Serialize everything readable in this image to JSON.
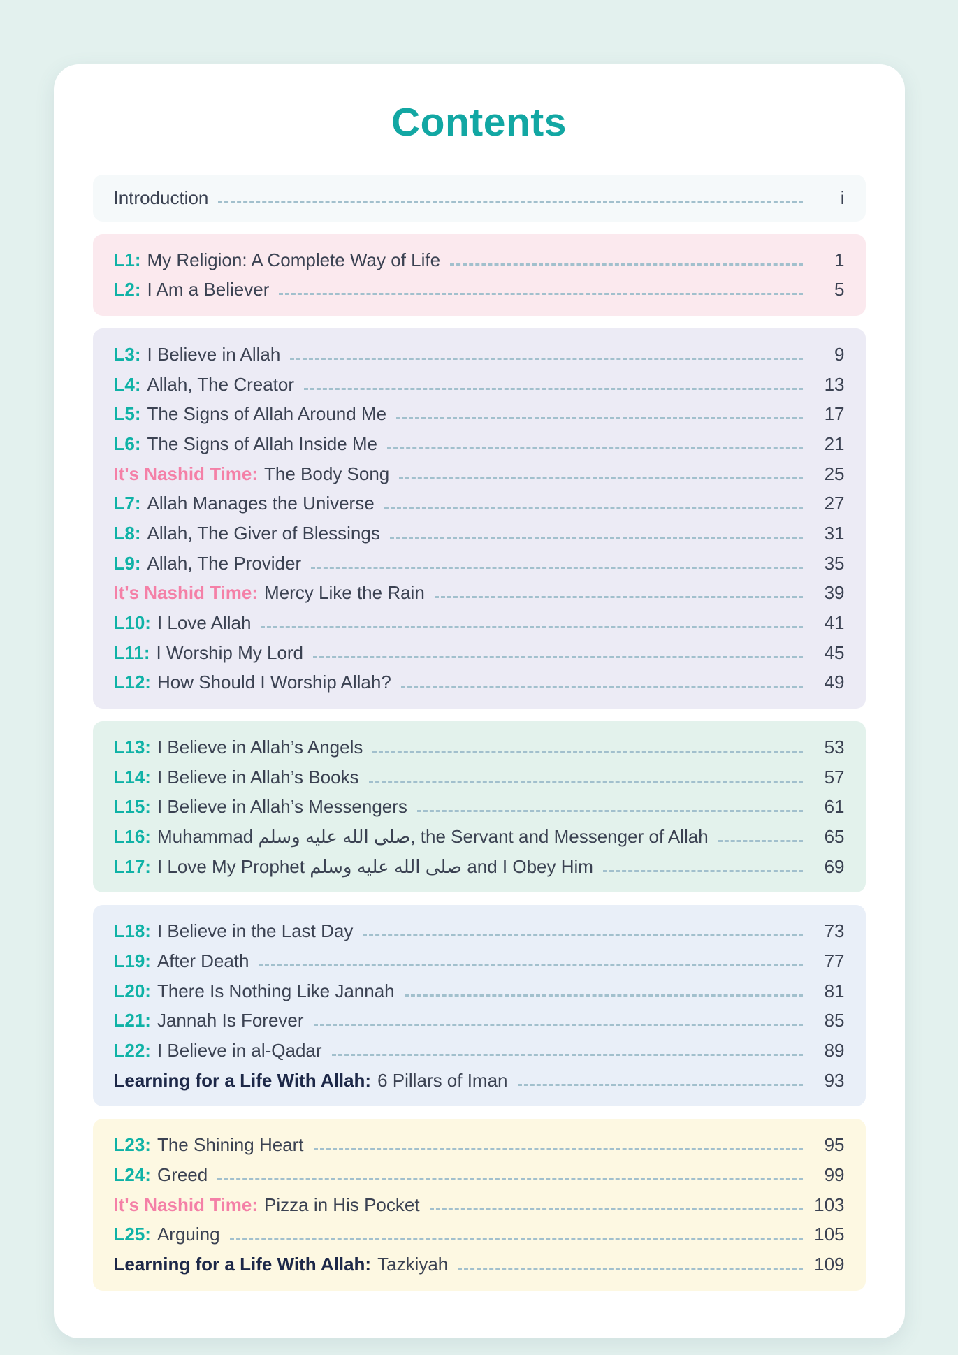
{
  "header": {
    "title": "Contents"
  },
  "colors": {
    "page_background": "#e3f1ee",
    "card_background": "#ffffff",
    "heading_teal": "#12a7a3",
    "lesson_prefix_teal": "#0fb2a6",
    "nashid_prefix_pink": "#f480a7",
    "learning_prefix_navy": "#1d2848",
    "body_text": "#3b4252",
    "leader_dash": "#a2c0cd"
  },
  "sections": [
    {
      "bg": "#f5f9fa",
      "kind": "intro",
      "entries": [
        {
          "type": "plain",
          "prefix": "",
          "title": "Introduction",
          "page": "i"
        }
      ]
    },
    {
      "bg": "#fbe9ee",
      "kind": "unit",
      "entries": [
        {
          "type": "lesson",
          "prefix": "L1:",
          "title": "My Religion: A Complete Way of Life",
          "page": "1"
        },
        {
          "type": "lesson",
          "prefix": "L2:",
          "title": "I Am a Believer",
          "page": "5"
        }
      ]
    },
    {
      "bg": "#ecebf5",
      "kind": "unit",
      "entries": [
        {
          "type": "lesson",
          "prefix": "L3:",
          "title": "I Believe in Allah",
          "page": "9"
        },
        {
          "type": "lesson",
          "prefix": "L4:",
          "title": "Allah, The Creator",
          "page": "13"
        },
        {
          "type": "lesson",
          "prefix": "L5:",
          "title": "The Signs of Allah Around Me",
          "page": "17"
        },
        {
          "type": "lesson",
          "prefix": "L6:",
          "title": "The Signs of Allah Inside Me",
          "page": "21"
        },
        {
          "type": "nashid",
          "prefix": "It's Nashid Time:",
          "title": "The Body Song",
          "page": "25"
        },
        {
          "type": "lesson",
          "prefix": "L7:",
          "title": "Allah Manages the Universe",
          "page": "27"
        },
        {
          "type": "lesson",
          "prefix": "L8:",
          "title": "Allah, The Giver of Blessings",
          "page": "31"
        },
        {
          "type": "lesson",
          "prefix": "L9:",
          "title": "Allah, The Provider",
          "page": "35"
        },
        {
          "type": "nashid",
          "prefix": "It's Nashid Time:",
          "title": "Mercy Like the Rain",
          "page": "39"
        },
        {
          "type": "lesson",
          "prefix": "L10:",
          "title": "I Love Allah",
          "page": "41"
        },
        {
          "type": "lesson",
          "prefix": "L11:",
          "title": "I Worship My Lord",
          "page": "45"
        },
        {
          "type": "lesson",
          "prefix": "L12:",
          "title": "How Should I Worship Allah?",
          "page": "49"
        }
      ]
    },
    {
      "bg": "#e3f2ec",
      "kind": "unit",
      "entries": [
        {
          "type": "lesson",
          "prefix": "L13:",
          "title": "I Believe in Allah’s Angels",
          "page": "53"
        },
        {
          "type": "lesson",
          "prefix": "L14:",
          "title": "I Believe in Allah’s Books",
          "page": "57"
        },
        {
          "type": "lesson",
          "prefix": "L15:",
          "title": "I Believe in Allah’s Messengers",
          "page": "61"
        },
        {
          "type": "lesson",
          "prefix": "L16:",
          "title": "Muhammad صلى الله عليه وسلم, the Servant and Messenger of Allah",
          "page": "65"
        },
        {
          "type": "lesson",
          "prefix": "L17:",
          "title": "I Love My Prophet صلى الله عليه وسلم and I Obey Him",
          "page": "69"
        }
      ]
    },
    {
      "bg": "#e9eff8",
      "kind": "unit",
      "entries": [
        {
          "type": "lesson",
          "prefix": "L18:",
          "title": "I Believe in the Last Day",
          "page": "73"
        },
        {
          "type": "lesson",
          "prefix": "L19:",
          "title": "After Death",
          "page": "77"
        },
        {
          "type": "lesson",
          "prefix": "L20:",
          "title": "There Is Nothing Like Jannah",
          "page": "81"
        },
        {
          "type": "lesson",
          "prefix": "L21:",
          "title": "Jannah Is Forever",
          "page": "85"
        },
        {
          "type": "lesson",
          "prefix": "L22:",
          "title": "I Believe in al-Qadar",
          "page": "89"
        },
        {
          "type": "learning",
          "prefix": "Learning for a Life With Allah:",
          "title": "6 Pillars of Iman",
          "page": "93"
        }
      ]
    },
    {
      "bg": "#fdf8e2",
      "kind": "unit",
      "entries": [
        {
          "type": "lesson",
          "prefix": "L23:",
          "title": "The Shining Heart",
          "page": "95"
        },
        {
          "type": "lesson",
          "prefix": "L24:",
          "title": "Greed",
          "page": "99"
        },
        {
          "type": "nashid",
          "prefix": "It's Nashid Time:",
          "title": "Pizza in His Pocket",
          "page": "103"
        },
        {
          "type": "lesson",
          "prefix": "L25:",
          "title": "Arguing",
          "page": "105"
        },
        {
          "type": "learning",
          "prefix": "Learning for a Life With Allah:",
          "title": "Tazkiyah",
          "page": "109"
        }
      ]
    }
  ]
}
